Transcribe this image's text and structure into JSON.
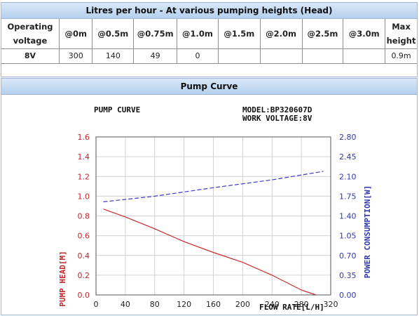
{
  "table": {
    "title": "Litres per hour - At various pumping heights (Head)",
    "columns": [
      "Operating voltage",
      "@0m",
      "@0.5m",
      "@0.75m",
      "@1.0m",
      "@1.5m",
      "@2.0m",
      "@2.5m",
      "@3.0m",
      "Max height"
    ],
    "row": [
      "8V",
      "300",
      "140",
      "49",
      "0",
      "",
      "",
      "",
      "",
      "0.9m"
    ]
  },
  "chart_section": {
    "title": "Pump Curve"
  },
  "chart_data": {
    "type": "line",
    "title": "PUMP CURVE",
    "model_label": "MODEL:BP320607D",
    "voltage_label": "WORK VOLTAGE:8V",
    "xlabel": "FLOW RATE[L/H]",
    "ylabel_left": "PUMP HEAD[M]",
    "ylabel_right": "POWER CONSUMPTION[W]",
    "xlim": [
      0,
      320
    ],
    "ylim_left": [
      0,
      1.6
    ],
    "ylim_right": [
      0,
      2.8
    ],
    "x_ticks": [
      0,
      40,
      80,
      120,
      160,
      200,
      240,
      280,
      320
    ],
    "y_ticks_left": [
      "0.0",
      "0.2",
      "0.4",
      "0.6",
      "0.8",
      "1.0",
      "1.2",
      "1.4",
      "1.6"
    ],
    "y_ticks_right": [
      "0.00",
      "0.35",
      "0.70",
      "1.05",
      "1.40",
      "1.75",
      "2.10",
      "2.45",
      "2.80"
    ],
    "grid": true,
    "series": [
      {
        "axis": "left",
        "color": "#cc2a2a",
        "style": "solid",
        "x": [
          10,
          40,
          80,
          120,
          160,
          200,
          240,
          280,
          300
        ],
        "y": [
          0.87,
          0.79,
          0.67,
          0.54,
          0.43,
          0.33,
          0.2,
          0.05,
          0.0
        ]
      },
      {
        "axis": "right",
        "color": "#3a3acc",
        "style": "dashed",
        "x": [
          10,
          80,
          160,
          240,
          310
        ],
        "y": [
          1.65,
          1.75,
          1.9,
          2.04,
          2.19
        ]
      }
    ]
  }
}
